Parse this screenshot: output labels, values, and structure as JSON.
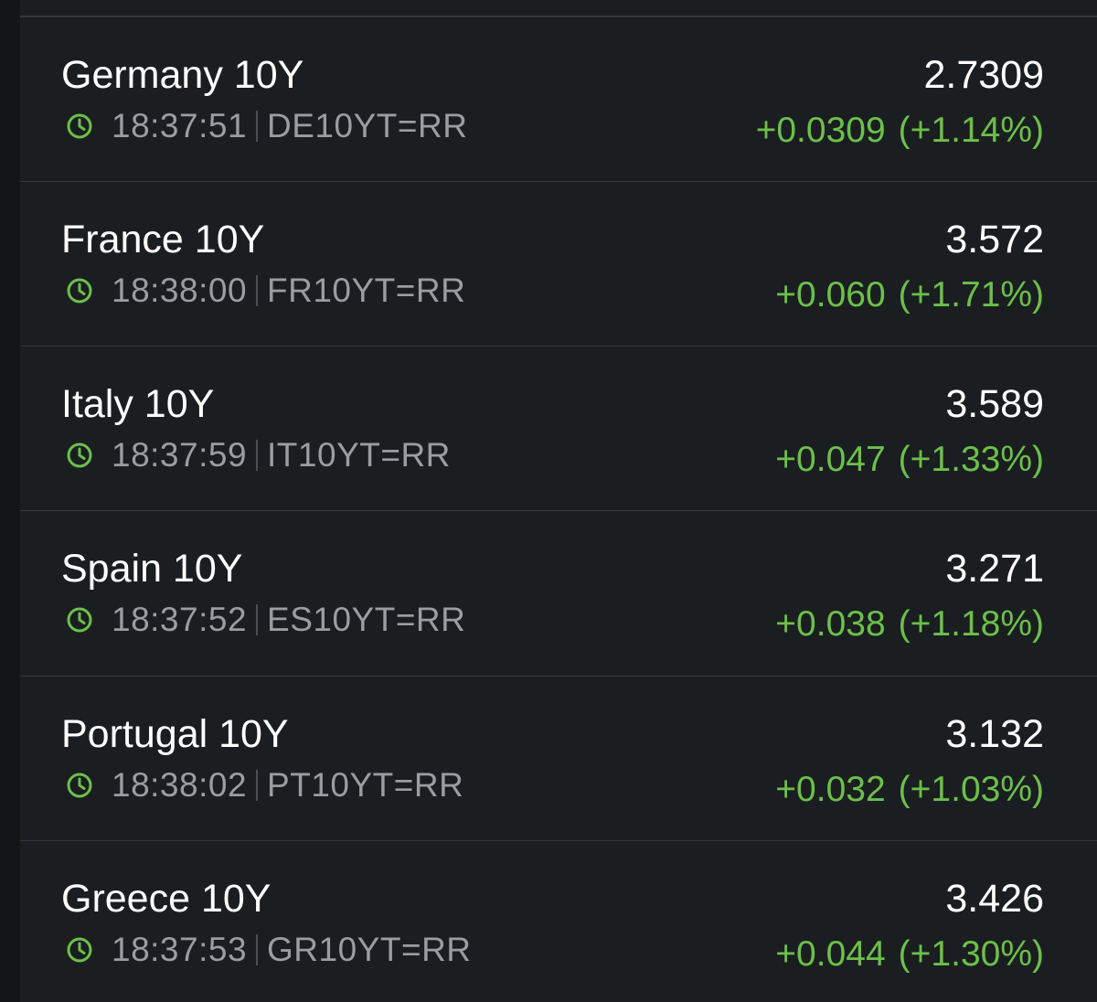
{
  "colors": {
    "background": "#1b1e21",
    "divider": "#34383c",
    "primary_text": "#ffffff",
    "secondary_text": "#9a9da1",
    "positive_change": "#6cc04a",
    "clock_icon": "#6cc04a"
  },
  "rows": [
    {
      "name": "Germany 10Y",
      "time": "18:37:51",
      "ric": "DE10YT=RR",
      "value": "2.7309",
      "change": "+0.0309",
      "pct": "(+1.14%)",
      "icon": "clock-icon"
    },
    {
      "name": "France 10Y",
      "time": "18:38:00",
      "ric": "FR10YT=RR",
      "value": "3.572",
      "change": "+0.060",
      "pct": "(+1.71%)",
      "icon": "clock-icon"
    },
    {
      "name": "Italy 10Y",
      "time": "18:37:59",
      "ric": "IT10YT=RR",
      "value": "3.589",
      "change": "+0.047",
      "pct": "(+1.33%)",
      "icon": "clock-icon"
    },
    {
      "name": "Spain 10Y",
      "time": "18:37:52",
      "ric": "ES10YT=RR",
      "value": "3.271",
      "change": "+0.038",
      "pct": "(+1.18%)",
      "icon": "clock-icon"
    },
    {
      "name": "Portugal 10Y",
      "time": "18:38:02",
      "ric": "PT10YT=RR",
      "value": "3.132",
      "change": "+0.032",
      "pct": "(+1.03%)",
      "icon": "clock-icon"
    },
    {
      "name": "Greece 10Y",
      "time": "18:37:53",
      "ric": "GR10YT=RR",
      "value": "3.426",
      "change": "+0.044",
      "pct": "(+1.30%)",
      "icon": "clock-icon"
    }
  ]
}
